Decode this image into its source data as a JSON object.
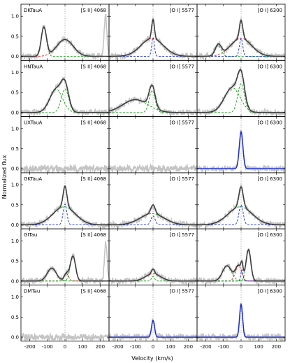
{
  "figure": {
    "ylabel": "Normalized flux",
    "xlabel": "Velocity (km/s)"
  },
  "colors": {
    "observed": "#c4c4c4",
    "total_fit": "#3a3a3a",
    "red_component": "#d42020",
    "green_component": "#18a018",
    "blue_component": "#1428d8",
    "zero_line": "#777777"
  },
  "chart_data": {
    "type": "line",
    "layout": "grid of 6 rows by 3 columns",
    "xlim": [
      -250,
      250
    ],
    "ylim": [
      -0.1,
      1.3
    ],
    "xticks": [
      -200,
      -100,
      0,
      100,
      200
    ],
    "xtick_labels": [
      "-200",
      "-100",
      "0",
      "100",
      "200"
    ],
    "yticks": [
      0.0,
      0.5,
      1.0
    ],
    "ytick_labels": [
      "0.0",
      "0.5",
      "1.0"
    ],
    "columns": [
      "[S II] 4068",
      "[O I] 5577",
      "[O I] 6300"
    ],
    "rows": [
      {
        "star": "DKTauA",
        "panels": [
          {
            "line": "[S II] 4068",
            "components": [
              {
                "color": "red",
                "center": 0,
                "amplitude": 0.42,
                "fwhm": 110
              },
              {
                "color": "green",
                "center": -120,
                "amplitude": 0.72,
                "fwhm": 35
              }
            ],
            "observed_extra": [
              {
                "center": 230,
                "amplitude": 1.0,
                "fwhm": 18
              }
            ]
          },
          {
            "line": "[O I] 5577",
            "components": [
              {
                "color": "red",
                "center": -5,
                "amplitude": 0.45,
                "fwhm": 150
              },
              {
                "color": "blue",
                "center": 0,
                "amplitude": 0.47,
                "fwhm": 18
              }
            ]
          },
          {
            "line": "[O I] 6300",
            "components": [
              {
                "color": "red",
                "center": 0,
                "amplitude": 0.45,
                "fwhm": 140
              },
              {
                "color": "green",
                "center": -130,
                "amplitude": 0.27,
                "fwhm": 40
              },
              {
                "color": "blue",
                "center": 0,
                "amplitude": 0.45,
                "fwhm": 22
              }
            ]
          }
        ]
      },
      {
        "star": "HNTauA",
        "panels": [
          {
            "line": "[S II] 4068",
            "components": [
              {
                "color": "green",
                "center": -50,
                "amplitude": 0.58,
                "fwhm": 85
              },
              {
                "color": "green",
                "center": 0,
                "amplitude": 0.58,
                "fwhm": 50
              }
            ]
          },
          {
            "line": "[O I] 5577",
            "components": [
              {
                "color": "green",
                "center": -100,
                "amplitude": 0.32,
                "fwhm": 170
              },
              {
                "color": "green",
                "center": -5,
                "amplitude": 0.55,
                "fwhm": 40
              }
            ]
          },
          {
            "line": "[O I] 6300",
            "components": [
              {
                "color": "green",
                "center": -50,
                "amplitude": 0.62,
                "fwhm": 105
              },
              {
                "color": "green",
                "center": 0,
                "amplitude": 0.72,
                "fwhm": 45
              }
            ]
          }
        ]
      },
      {
        "star": "UXTauA",
        "panels": [
          {
            "line": "[S II] 4068",
            "components": []
          },
          {
            "line": "[O I] 5577",
            "components": []
          },
          {
            "line": "[O I] 6300",
            "components": [
              {
                "color": "blue",
                "center": 0,
                "amplitude": 0.92,
                "fwhm": 24
              }
            ]
          }
        ]
      },
      {
        "star": "GKTauA",
        "panels": [
          {
            "line": "[S II] 4068",
            "components": [
              {
                "color": "green",
                "center": -5,
                "amplitude": 0.45,
                "fwhm": 150
              },
              {
                "color": "blue",
                "center": 0,
                "amplitude": 0.52,
                "fwhm": 25
              }
            ]
          },
          {
            "line": "[O I] 5577",
            "components": [
              {
                "color": "green",
                "center": -5,
                "amplitude": 0.28,
                "fwhm": 160
              },
              {
                "color": "blue",
                "center": 0,
                "amplitude": 0.22,
                "fwhm": 28
              }
            ]
          },
          {
            "line": "[O I] 6300",
            "components": [
              {
                "color": "green",
                "center": -5,
                "amplitude": 0.45,
                "fwhm": 160
              },
              {
                "color": "blue",
                "center": 0,
                "amplitude": 0.5,
                "fwhm": 28
              }
            ]
          }
        ]
      },
      {
        "star": "GITau",
        "panels": [
          {
            "line": "[S II] 4068",
            "components": [
              {
                "color": "green",
                "center": -75,
                "amplitude": 0.32,
                "fwhm": 60
              },
              {
                "color": "red",
                "center": 8,
                "amplitude": 0.18,
                "fwhm": 30
              },
              {
                "color": "green",
                "center": 45,
                "amplitude": 0.62,
                "fwhm": 35
              }
            ],
            "observed_extra": [
              {
                "center": 232,
                "amplitude": 0.95,
                "fwhm": 18
              }
            ]
          },
          {
            "line": "[O I] 5577",
            "components": [
              {
                "color": "red",
                "center": 0,
                "amplitude": 0.18,
                "fwhm": 100
              },
              {
                "color": "green",
                "center": 0,
                "amplitude": 0.12,
                "fwhm": 20
              }
            ]
          },
          {
            "line": "[O I] 6300",
            "components": [
              {
                "color": "green",
                "center": -80,
                "amplitude": 0.38,
                "fwhm": 60
              },
              {
                "color": "red",
                "center": -15,
                "amplitude": 0.38,
                "fwhm": 40
              },
              {
                "color": "blue",
                "center": 5,
                "amplitude": 0.28,
                "fwhm": 15
              },
              {
                "color": "green",
                "center": 42,
                "amplitude": 0.78,
                "fwhm": 32
              }
            ]
          }
        ]
      },
      {
        "star": "DMTau",
        "panels": [
          {
            "line": "[S II] 4068",
            "components": []
          },
          {
            "line": "[O I] 5577",
            "components": [
              {
                "color": "blue",
                "center": 0,
                "amplitude": 0.42,
                "fwhm": 20
              }
            ]
          },
          {
            "line": "[O I] 6300",
            "components": [
              {
                "color": "blue",
                "center": 0,
                "amplitude": 0.82,
                "fwhm": 20
              }
            ]
          }
        ]
      }
    ]
  }
}
